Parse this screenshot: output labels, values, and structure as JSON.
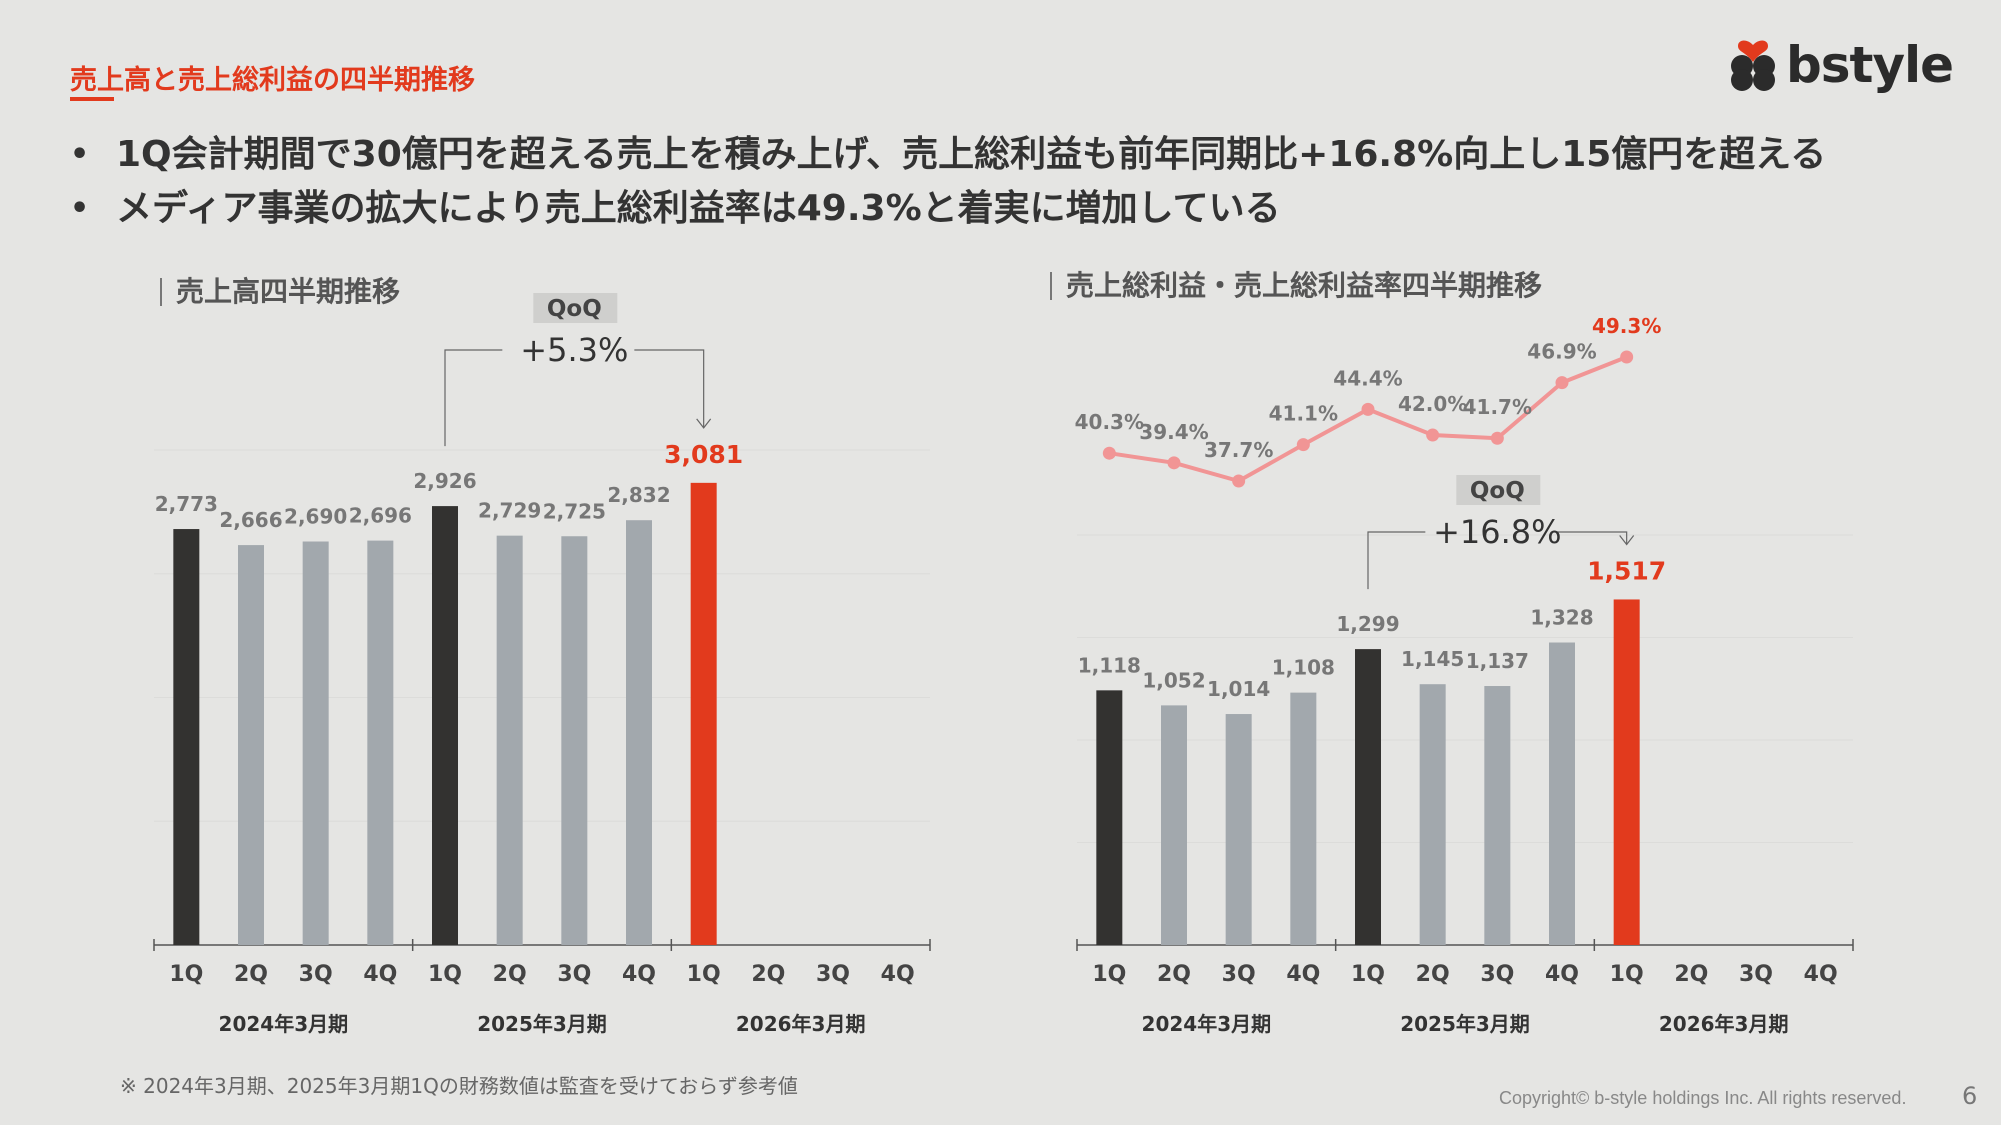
{
  "slide": {
    "title": "売上高と売上総利益の四半期推移",
    "logo_text": "bstyle",
    "bullets": [
      "1Q会計期間で30億円を超える売上を積み上げ、売上総利益も前年同期比+16.8%向上し15億円を超える",
      "メディア事業の拡大により売上総利益率は49.3%と着実に増加している"
    ],
    "footnote": "※ 2024年3月期、2025年3月期1Qの財務数値は監査を受けておらず参考値",
    "copyright": "Copyright© b-style holdings Inc. All rights reserved.",
    "page_number": "6"
  },
  "colors": {
    "accent": "#e23a1d",
    "dark_bar": "#333230",
    "grey_bar": "#a2a8ad",
    "line": "#f19595",
    "label_grey": "#777777",
    "background": "#e5e5e3"
  },
  "chart_data": [
    {
      "type": "bar",
      "title": "売上高四半期推移",
      "categories": [
        "1Q",
        "2Q",
        "3Q",
        "4Q",
        "1Q",
        "2Q",
        "3Q",
        "4Q",
        "1Q",
        "2Q",
        "3Q",
        "4Q"
      ],
      "groups": [
        "2024年3月期",
        "2025年3月期",
        "2026年3月期"
      ],
      "values": [
        2773,
        2666,
        2690,
        2696,
        2926,
        2729,
        2725,
        2832,
        3081,
        null,
        null,
        null
      ],
      "value_labels": [
        "2,773",
        "2,666",
        "2,690",
        "2,696",
        "2,926",
        "2,729",
        "2,725",
        "2,832",
        "3,081",
        "",
        "",
        ""
      ],
      "bar_colors": [
        "dark",
        "grey",
        "grey",
        "grey",
        "dark",
        "grey",
        "grey",
        "grey",
        "accent"
      ],
      "annotation": {
        "label": "QoQ",
        "value": "+5.3%",
        "from_index": 4,
        "to_index": 8
      },
      "ylim": [
        0,
        3300
      ],
      "grid": true
    },
    {
      "type": "bar+line",
      "title": "売上総利益・売上総利益率四半期推移",
      "categories": [
        "1Q",
        "2Q",
        "3Q",
        "4Q",
        "1Q",
        "2Q",
        "3Q",
        "4Q",
        "1Q",
        "2Q",
        "3Q",
        "4Q"
      ],
      "groups": [
        "2024年3月期",
        "2025年3月期",
        "2026年3月期"
      ],
      "bar_series": {
        "values": [
          1118,
          1052,
          1014,
          1108,
          1299,
          1145,
          1137,
          1328,
          1517,
          null,
          null,
          null
        ],
        "value_labels": [
          "1,118",
          "1,052",
          "1,014",
          "1,108",
          "1,299",
          "1,145",
          "1,137",
          "1,328",
          "1,517",
          "",
          "",
          ""
        ],
        "bar_colors": [
          "dark",
          "grey",
          "grey",
          "grey",
          "dark",
          "grey",
          "grey",
          "grey",
          "accent"
        ]
      },
      "line_series": {
        "values": [
          40.3,
          39.4,
          37.7,
          41.1,
          44.4,
          42.0,
          41.7,
          46.9,
          49.3
        ],
        "value_labels": [
          "40.3%",
          "39.4%",
          "37.7%",
          "41.1%",
          "44.4%",
          "42.0%",
          "41.7%",
          "46.9%",
          "49.3%"
        ]
      },
      "annotation": {
        "label": "QoQ",
        "value": "+16.8%",
        "from_index": 4,
        "to_index": 8
      },
      "ylim": [
        0,
        1800
      ],
      "grid": true
    }
  ]
}
